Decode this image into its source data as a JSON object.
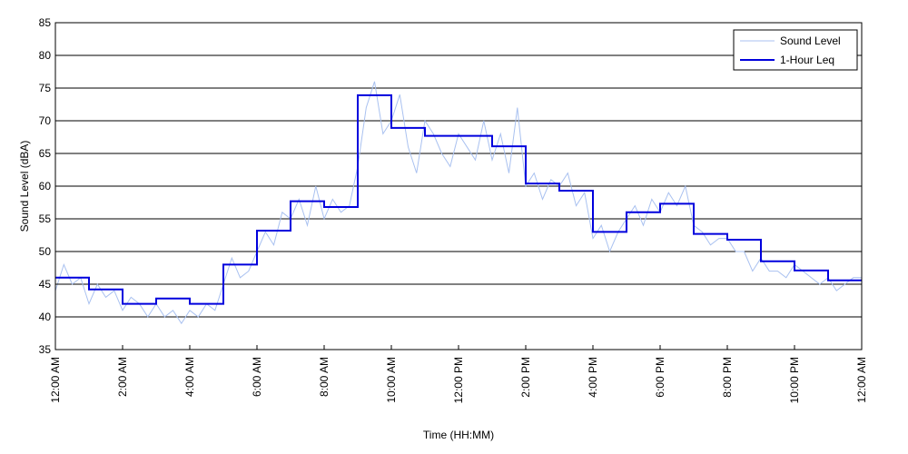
{
  "chart_data": {
    "type": "line",
    "title": "",
    "xlabel": "Time (HH:MM)",
    "ylabel": "Sound Level (dBA)",
    "ylim": [
      35,
      85
    ],
    "yticks": [
      35,
      40,
      45,
      50,
      55,
      60,
      65,
      70,
      75,
      80,
      85
    ],
    "xlim_hours": [
      0,
      24
    ],
    "xticks": [
      {
        "hour": 0,
        "label": "12:00 AM"
      },
      {
        "hour": 2,
        "label": "2:00 AM"
      },
      {
        "hour": 4,
        "label": "4:00 AM"
      },
      {
        "hour": 6,
        "label": "6:00 AM"
      },
      {
        "hour": 8,
        "label": "8:00 AM"
      },
      {
        "hour": 10,
        "label": "10:00 AM"
      },
      {
        "hour": 12,
        "label": "12:00 PM"
      },
      {
        "hour": 14,
        "label": "2:00 PM"
      },
      {
        "hour": 16,
        "label": "4:00 PM"
      },
      {
        "hour": 18,
        "label": "6:00 PM"
      },
      {
        "hour": 20,
        "label": "8:00 PM"
      },
      {
        "hour": 22,
        "label": "10:00 PM"
      },
      {
        "hour": 24,
        "label": "12:00 AM"
      }
    ],
    "grid": "horizontal",
    "legend_position": "top-right",
    "series": [
      {
        "name": "Sound Level",
        "color": "#a9c1f0",
        "style": "thin-line",
        "x_hours": [
          0,
          0.25,
          0.5,
          0.75,
          1,
          1.25,
          1.5,
          1.75,
          2,
          2.25,
          2.5,
          2.75,
          3,
          3.25,
          3.5,
          3.75,
          4,
          4.25,
          4.5,
          4.75,
          5,
          5.25,
          5.5,
          5.75,
          6,
          6.25,
          6.5,
          6.75,
          7,
          7.25,
          7.5,
          7.75,
          8,
          8.25,
          8.5,
          8.75,
          9,
          9.25,
          9.5,
          9.75,
          10,
          10.25,
          10.5,
          10.75,
          11,
          11.25,
          11.5,
          11.75,
          12,
          12.25,
          12.5,
          12.75,
          13,
          13.25,
          13.5,
          13.75,
          14,
          14.25,
          14.5,
          14.75,
          15,
          15.25,
          15.5,
          15.75,
          16,
          16.25,
          16.5,
          16.75,
          17,
          17.25,
          17.5,
          17.75,
          18,
          18.25,
          18.5,
          18.75,
          19,
          19.25,
          19.5,
          19.75,
          20,
          20.25,
          20.5,
          20.75,
          21,
          21.25,
          21.5,
          21.75,
          22,
          22.25,
          22.5,
          22.75,
          23,
          23.25,
          23.5,
          23.75,
          24
        ],
        "values": [
          44,
          48,
          45,
          46,
          42,
          45,
          43,
          44,
          41,
          43,
          42,
          40,
          42,
          40,
          41,
          39,
          41,
          40,
          42,
          41,
          45,
          49,
          46,
          47,
          50,
          53,
          51,
          56,
          55,
          58,
          54,
          60,
          55,
          58,
          56,
          57,
          63,
          72,
          76,
          68,
          70,
          74,
          66,
          62,
          70,
          68,
          65,
          63,
          68,
          66,
          64,
          70,
          64,
          68,
          62,
          72,
          60,
          62,
          58,
          61,
          60,
          62,
          57,
          59,
          52,
          54,
          50,
          53,
          55,
          57,
          54,
          58,
          56,
          59,
          57,
          60,
          54,
          53,
          51,
          52,
          52,
          50,
          50,
          47,
          49,
          47,
          47,
          46,
          48,
          47,
          46,
          45,
          46,
          44,
          45,
          46,
          46
        ]
      },
      {
        "name": "1-Hour Leq",
        "color": "#0000dd",
        "style": "step",
        "hours": [
          0,
          1,
          2,
          3,
          4,
          5,
          6,
          7,
          8,
          9,
          10,
          11,
          12,
          13,
          14,
          15,
          16,
          17,
          18,
          19,
          20,
          21,
          22,
          23
        ],
        "values": [
          46,
          44.2,
          42,
          42.8,
          42,
          48,
          53.2,
          57.7,
          56.8,
          73.9,
          68.9,
          67.7,
          67.7,
          66.1,
          60.4,
          59.3,
          53,
          56,
          57.3,
          52.7,
          51.8,
          48.5,
          47.1,
          45.6
        ]
      }
    ]
  }
}
